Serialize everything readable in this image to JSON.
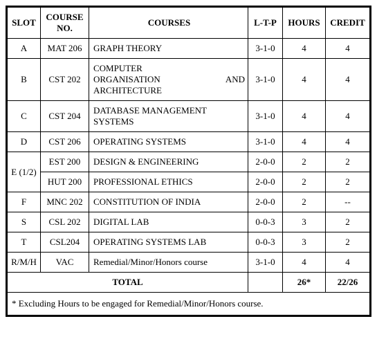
{
  "columns": {
    "slot": "SLOT",
    "no": "COURSE NO.",
    "name": "COURSES",
    "ltp": "L-T-P",
    "hours": "HOURS",
    "credit": "CREDIT"
  },
  "rows": [
    {
      "slot": "A",
      "no": "MAT 206",
      "name": "GRAPH THEORY",
      "ltp": "3-1-0",
      "hours": "4",
      "credit": "4"
    },
    {
      "slot": "B",
      "no": "CST 202",
      "name_line1": "COMPUTER",
      "name_line2": "ORGANISATION AND",
      "name_rest": "ARCHITECTURE",
      "ltp": "3-1-0",
      "hours": "4",
      "credit": "4"
    },
    {
      "slot": "C",
      "no": "CST 204",
      "name": "DATABASE MANAGEMENT SYSTEMS",
      "ltp": "3-1-0",
      "hours": "4",
      "credit": "4"
    },
    {
      "slot": "D",
      "no": "CST 206",
      "name": "OPERATING SYSTEMS",
      "ltp": "3-1-0",
      "hours": "4",
      "credit": "4"
    },
    {
      "slot": "E (1/2)",
      "no": "EST 200",
      "name": "DESIGN & ENGINEERING",
      "ltp": "2-0-0",
      "hours": "2",
      "credit": "2"
    },
    {
      "no": "HUT 200",
      "name": "PROFESSIONAL ETHICS",
      "ltp": "2-0-0",
      "hours": "2",
      "credit": "2"
    },
    {
      "slot": "F",
      "no": "MNC 202",
      "name": "CONSTITUTION OF INDIA",
      "ltp": "2-0-0",
      "hours": "2",
      "credit": "--"
    },
    {
      "slot": "S",
      "no": "CSL 202",
      "name": "DIGITAL LAB",
      "ltp": "0-0-3",
      "hours": "3",
      "credit": "2"
    },
    {
      "slot": "T",
      "no": "CSL204",
      "name": "OPERATING SYSTEMS LAB",
      "ltp": "0-0-3",
      "hours": "3",
      "credit": "2"
    },
    {
      "slot": "R/M/H",
      "no": "VAC",
      "name": "Remedial/Minor/Honors course",
      "ltp": "3-1-0",
      "hours": "4",
      "credit": "4"
    }
  ],
  "total": {
    "label": "TOTAL",
    "ltp": "",
    "hours": "26*",
    "credit": "22/26"
  },
  "footnote": "* Excluding Hours to be engaged for Remedial/Minor/Honors course."
}
